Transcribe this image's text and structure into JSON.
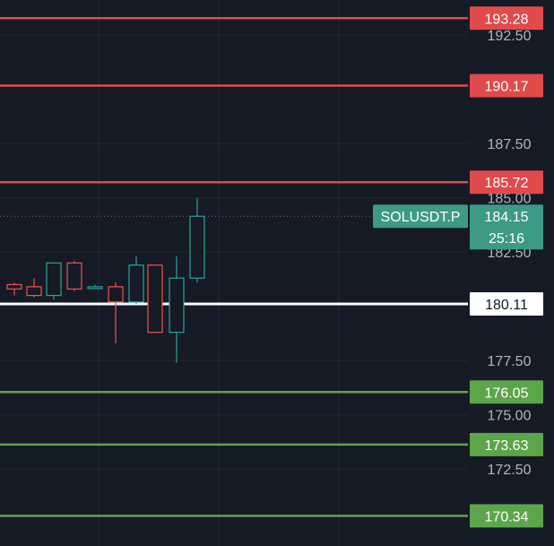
{
  "chart_data": {
    "type": "candlestick",
    "symbol": "SOLUSDT.P",
    "current_price": "184.15",
    "countdown": "25:16",
    "y_ticks": [
      "192.50",
      "187.50",
      "185.00",
      "182.50",
      "177.50",
      "175.00",
      "172.50"
    ],
    "y_tick_values": [
      192.5,
      187.5,
      185.0,
      182.5,
      177.5,
      175.0,
      172.5
    ],
    "ylim": [
      169.5,
      194.0
    ],
    "grid": true,
    "levels": [
      {
        "label": "193.28",
        "value": 193.28,
        "kind": "resistance"
      },
      {
        "label": "190.17",
        "value": 190.17,
        "kind": "resistance"
      },
      {
        "label": "185.72",
        "value": 185.72,
        "kind": "resistance"
      },
      {
        "label": "180.11",
        "value": 180.11,
        "kind": "pivot"
      },
      {
        "label": "176.05",
        "value": 176.05,
        "kind": "support"
      },
      {
        "label": "173.63",
        "value": 173.63,
        "kind": "support"
      },
      {
        "label": "170.34",
        "value": 170.34,
        "kind": "support"
      }
    ],
    "candles": [
      {
        "open": 181.0,
        "high": 181.1,
        "low": 180.5,
        "close": 180.8
      },
      {
        "open": 180.9,
        "high": 181.3,
        "low": 180.4,
        "close": 180.5
      },
      {
        "open": 180.5,
        "high": 182.0,
        "low": 180.3,
        "close": 182.0
      },
      {
        "open": 182.0,
        "high": 182.1,
        "low": 180.7,
        "close": 180.8
      },
      {
        "open": 180.9,
        "high": 181.0,
        "low": 180.8,
        "close": 180.9
      },
      {
        "open": 180.9,
        "high": 181.1,
        "low": 178.3,
        "close": 180.2
      },
      {
        "open": 180.2,
        "high": 182.3,
        "low": 180.1,
        "close": 181.9
      },
      {
        "open": 181.9,
        "high": 181.9,
        "low": 178.8,
        "close": 178.8
      },
      {
        "open": 178.8,
        "high": 182.3,
        "low": 177.4,
        "close": 181.3
      },
      {
        "open": 181.3,
        "high": 185.0,
        "low": 181.1,
        "close": 184.15
      }
    ],
    "colors": {
      "background": "#161a25",
      "grid": "#232733",
      "text": "#b2b5be",
      "up": "#26a69a",
      "down": "#ef5350",
      "resistance": "#e04a4a",
      "support": "#5da54a",
      "pivot": "#ffffff",
      "price_badge": "#3d9a84"
    }
  }
}
